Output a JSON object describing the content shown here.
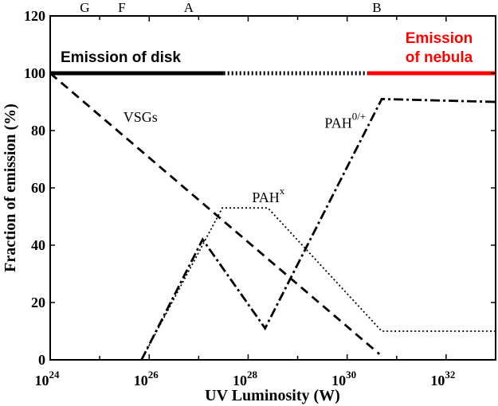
{
  "chart_data": {
    "type": "line",
    "title": "",
    "xlabel": "UV Luminosity (W)",
    "ylabel": "Fraction of emission (%)",
    "x_scale": "log",
    "xlim": [
      1e+24,
      1e+33
    ],
    "ylim": [
      0,
      120
    ],
    "grid": false,
    "x_ticks": [
      {
        "value": 1e+24,
        "base": "10",
        "exp": "24"
      },
      {
        "value": 1e+26,
        "base": "10",
        "exp": "26"
      },
      {
        "value": 1e+28,
        "base": "10",
        "exp": "28"
      },
      {
        "value": 1e+30,
        "base": "10",
        "exp": "30"
      },
      {
        "value": 1e+32,
        "base": "10",
        "exp": "32"
      }
    ],
    "y_ticks": [
      "0",
      "20",
      "40",
      "60",
      "80",
      "100",
      "120"
    ],
    "top_labels": [
      {
        "text": "G",
        "x": 5e+24
      },
      {
        "text": "F",
        "x": 2.8e+25
      },
      {
        "text": "A",
        "x": 6.3e+26
      },
      {
        "text": "B",
        "x": 3.98e+30
      }
    ],
    "series": [
      {
        "name": "VSGs",
        "style": "dashed",
        "points": [
          [
            1e+24,
            100
          ],
          [
            4.5e+30,
            2
          ]
        ]
      },
      {
        "name": "PAHx",
        "style": "dotted",
        "points": [
          [
            7e+25,
            0
          ],
          [
            3e+27,
            53
          ],
          [
            2.5e+28,
            53
          ],
          [
            5e+30,
            10
          ],
          [
            1e+33,
            10
          ]
        ]
      },
      {
        "name": "PAH0/+",
        "style": "dashdot",
        "points": [
          [
            7e+25,
            0
          ],
          [
            1.2e+27,
            42
          ],
          [
            2.2e+28,
            11
          ],
          [
            5e+30,
            91
          ],
          [
            1e+33,
            90
          ]
        ]
      }
    ],
    "annotations": [
      {
        "text": "VSGs",
        "sup": "",
        "x": 3e+25,
        "y": 83
      },
      {
        "text": "PAH",
        "sup": "x",
        "x": 1.2e+28,
        "y": 55
      },
      {
        "text": "PAH",
        "sup": "0/+",
        "x": 3.5e+29,
        "y": 81
      }
    ],
    "bands": [
      {
        "label": "Emission of disk",
        "style": "solid",
        "color": "#000000",
        "x_start": 1e+24,
        "x_end": 3.2e+27,
        "y": 100
      },
      {
        "label": "",
        "style": "dotted",
        "color": "#000000",
        "x_start": 3.2e+27,
        "x_end": 2.6e+30,
        "y": 100
      },
      {
        "label": "Emission of nebula",
        "style": "solid",
        "color": "#ff0000",
        "x_start": 2.6e+30,
        "x_end": 1e+33,
        "y": 100
      }
    ]
  }
}
